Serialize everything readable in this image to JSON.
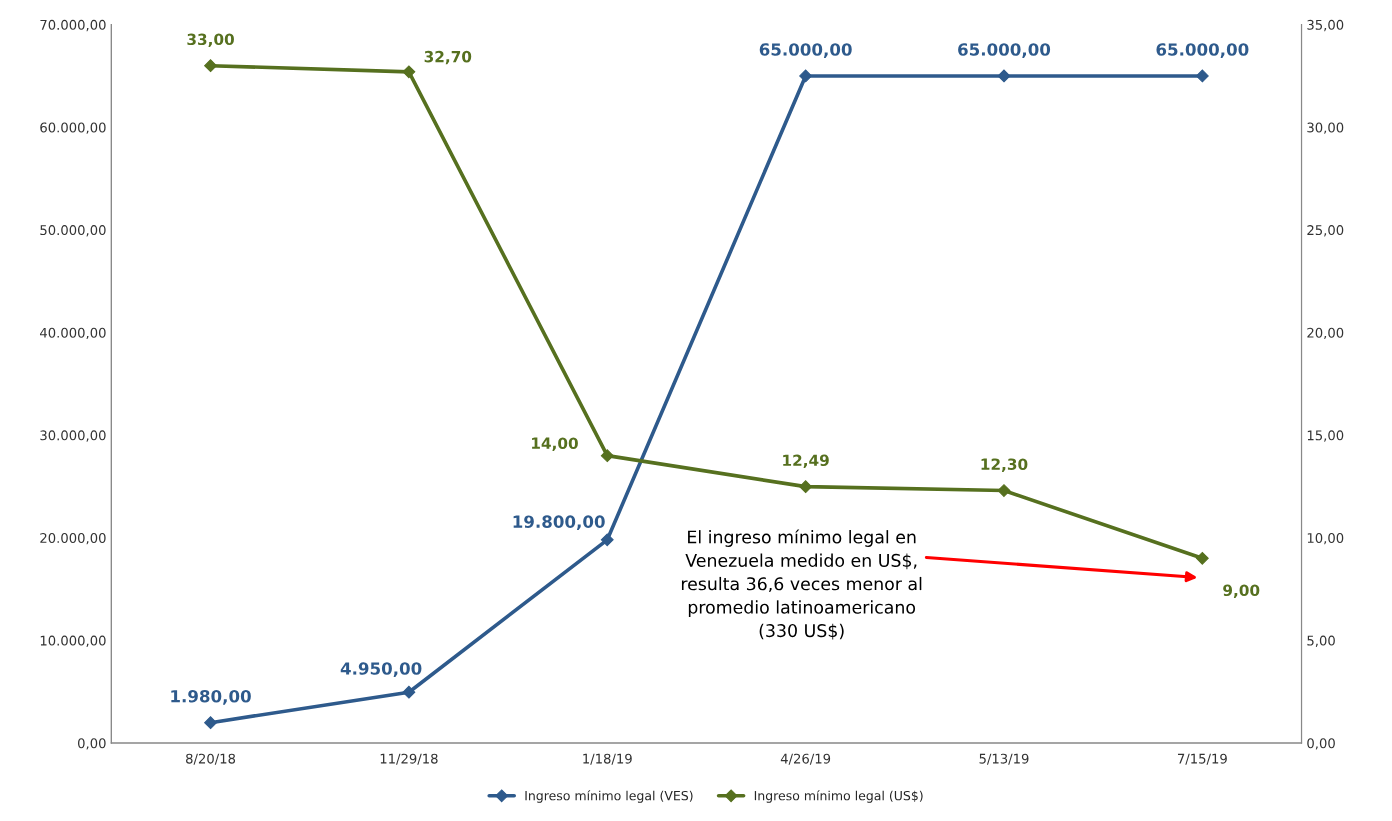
{
  "chart_data": {
    "type": "line",
    "categories": [
      "8/20/18",
      "11/29/18",
      "1/18/19",
      "4/26/19",
      "5/13/19",
      "7/15/19"
    ],
    "series": [
      {
        "name": "Ingreso mínimo legal (VES)",
        "color": "#2e5a8c",
        "values": [
          1980,
          4950,
          19800,
          65000,
          65000,
          65000
        ],
        "value_labels": [
          "1.980,00",
          "4.950,00",
          "19.800,00",
          "65.000,00",
          "65.000,00",
          "65.000,00"
        ]
      },
      {
        "name": "Ingreso mínimo legal (US$)",
        "color": "#56701f",
        "axis": "y2",
        "values": [
          33,
          32.7,
          14,
          12.49,
          12.3,
          9
        ],
        "value_labels": [
          "33,00",
          "32,70",
          "14,00",
          "12,49",
          "12,30",
          "9,00"
        ]
      }
    ],
    "ylim": [
      0,
      70000
    ],
    "yticks": [
      {
        "value": 0,
        "label": "0,00"
      },
      {
        "value": 10000,
        "label": "10.000,00"
      },
      {
        "value": 20000,
        "label": "20.000,00"
      },
      {
        "value": 30000,
        "label": "30.000,00"
      },
      {
        "value": 40000,
        "label": "40.000,00"
      },
      {
        "value": 50000,
        "label": "50.000,00"
      },
      {
        "value": 60000,
        "label": "60.000,00"
      },
      {
        "value": 70000,
        "label": "70.000,00"
      }
    ],
    "y2lim": [
      0,
      35
    ],
    "y2ticks": [
      {
        "value": 0,
        "label": "0,00"
      },
      {
        "value": 5,
        "label": "5,00"
      },
      {
        "value": 10,
        "label": "10,00"
      },
      {
        "value": 15,
        "label": "15,00"
      },
      {
        "value": 20,
        "label": "20,00"
      },
      {
        "value": 25,
        "label": "25,00"
      },
      {
        "value": 30,
        "label": "30,00"
      },
      {
        "value": 35,
        "label": "35,00"
      }
    ],
    "annotations": [
      "El ingreso mínimo legal en\nVenezuela medido en US$,\nresulta 36,6 veces menor al\npromedio latinoamericano\n(330 US$)"
    ],
    "marker": "diamond",
    "line_style": "solid",
    "grid": false,
    "legend": "bottom"
  }
}
